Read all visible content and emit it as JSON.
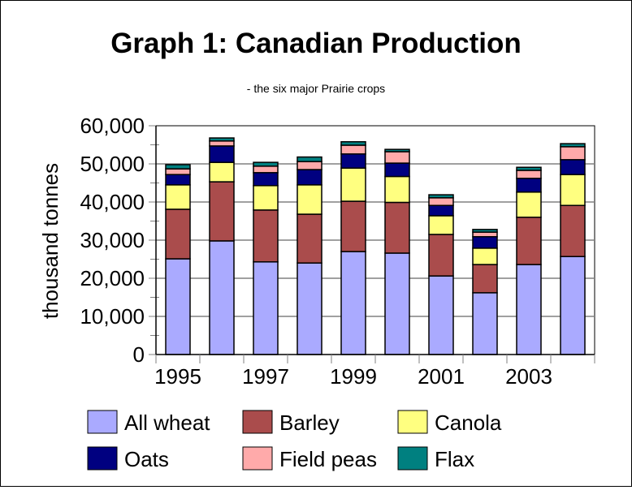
{
  "chart_data": {
    "type": "bar",
    "stacked": true,
    "title": "Graph 1: Canadian Production",
    "subtitle": "- the six major Prairie crops",
    "xlabel": "",
    "ylabel": "thousand tonnes",
    "ylim": [
      0,
      60000
    ],
    "yticks": [
      "0",
      "10,000",
      "20,000",
      "30,000",
      "40,000",
      "50,000",
      "60,000"
    ],
    "ytick_values": [
      0,
      10000,
      20000,
      30000,
      40000,
      50000,
      60000
    ],
    "categories": [
      "1995",
      "1996",
      "1997",
      "1998",
      "1999",
      "2000",
      "2001",
      "2002",
      "2003",
      "2004"
    ],
    "xtick_labels": [
      "1995",
      "",
      "1997",
      "",
      "1999",
      "",
      "2001",
      "",
      "2003",
      ""
    ],
    "grid": "horizontal",
    "legend_position": "bottom",
    "series": [
      {
        "name": "All wheat",
        "color": "#aaaaff",
        "values": [
          25100,
          29800,
          24300,
          24000,
          27000,
          26600,
          20600,
          16200,
          23600,
          25700
        ]
      },
      {
        "name": "Barley",
        "color": "#aa4c4c",
        "values": [
          13000,
          15500,
          13600,
          12800,
          13200,
          13300,
          10900,
          7400,
          12400,
          13400
        ]
      },
      {
        "name": "Canola",
        "color": "#ffff80",
        "values": [
          6400,
          5100,
          6400,
          7700,
          8700,
          6800,
          4900,
          4300,
          6600,
          8100
        ]
      },
      {
        "name": "Oats",
        "color": "#000080",
        "values": [
          2700,
          4300,
          3400,
          4000,
          3700,
          3500,
          2700,
          3000,
          3600,
          3900
        ]
      },
      {
        "name": "Field peas",
        "color": "#ffaaaa",
        "values": [
          1500,
          1300,
          1700,
          2100,
          2300,
          3000,
          2000,
          1200,
          2100,
          3400
        ]
      },
      {
        "name": "Flax",
        "color": "#008080",
        "values": [
          1100,
          800,
          1000,
          1200,
          900,
          600,
          800,
          700,
          800,
          800
        ]
      }
    ]
  }
}
